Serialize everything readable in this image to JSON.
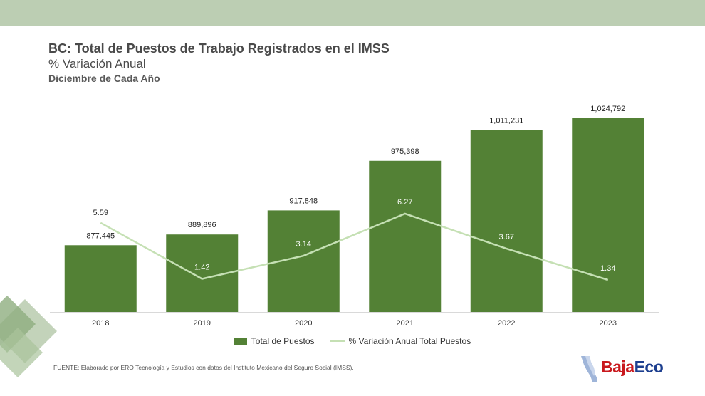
{
  "header": {
    "title": "BC: Total de Puestos de Trabajo Registrados en el IMSS",
    "subtitle": "% Variación Anual",
    "subtitle2": "Diciembre de Cada Año"
  },
  "chart_data": {
    "type": "bar",
    "categories": [
      "2018",
      "2019",
      "2020",
      "2021",
      "2022",
      "2023"
    ],
    "series": [
      {
        "name": "Total de Puestos",
        "type": "bar",
        "values": [
          877445,
          889896,
          917848,
          975398,
          1011231,
          1024792
        ],
        "labels": [
          "877,445",
          "889,896",
          "917,848",
          "975,398",
          "1,011,231",
          "1,024,792"
        ],
        "color": "#538135"
      },
      {
        "name": "% Variación Anual Total Puestos",
        "type": "line",
        "values": [
          5.59,
          1.42,
          3.14,
          6.27,
          3.67,
          1.34
        ],
        "labels": [
          "5.59",
          "1.42",
          "3.14",
          "6.27",
          "3.67",
          "1.34"
        ],
        "color": "#c5e0b4"
      }
    ],
    "legend": "bottom"
  },
  "footer": {
    "source": "FUENTE: Elaborado por ERO Tecnología y Estudios con datos del Instituto Mexicano del Seguro Social (IMSS).",
    "logo_part1": "Baja",
    "logo_part2": "Eco"
  },
  "colors": {
    "band": "#bcceb3",
    "bar": "#538135",
    "line": "#c5e0b4",
    "logo_red": "#c9191e",
    "logo_blue": "#1d3f8f"
  }
}
